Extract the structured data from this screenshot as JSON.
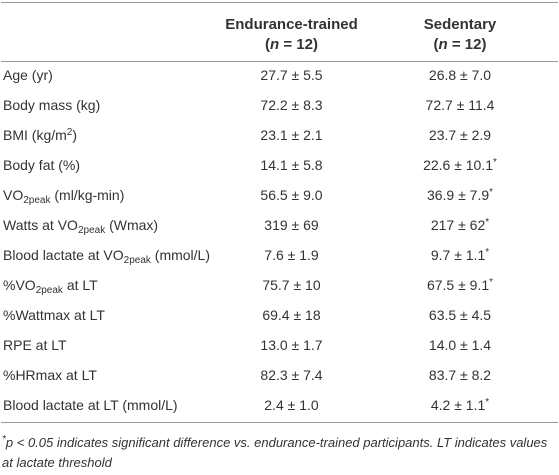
{
  "table": {
    "columns": [
      {
        "title": "Endurance-trained",
        "n": [
          {
            "text": "("
          },
          {
            "text": "n",
            "style": "italic"
          },
          {
            "text": " = 12)"
          }
        ]
      },
      {
        "title": "Sedentary",
        "n": [
          {
            "text": "("
          },
          {
            "text": "n",
            "style": "italic"
          },
          {
            "text": " = 12)"
          }
        ]
      }
    ],
    "rows": [
      {
        "label": [
          {
            "text": "Age (yr)"
          }
        ],
        "cells": [
          [
            {
              "text": "27.7 ± 5.5"
            }
          ],
          [
            {
              "text": "26.8 ± 7.0"
            }
          ]
        ]
      },
      {
        "label": [
          {
            "text": "Body mass (kg)"
          }
        ],
        "cells": [
          [
            {
              "text": "72.2 ± 8.3"
            }
          ],
          [
            {
              "text": "72.7 ± 11.4"
            }
          ]
        ]
      },
      {
        "label": [
          {
            "text": "BMI (kg/m"
          },
          {
            "text": "2",
            "style": "sup"
          },
          {
            "text": ")"
          }
        ],
        "cells": [
          [
            {
              "text": "23.1 ± 2.1"
            }
          ],
          [
            {
              "text": "23.7 ± 2.9"
            }
          ]
        ]
      },
      {
        "label": [
          {
            "text": "Body fat (%)"
          }
        ],
        "cells": [
          [
            {
              "text": "14.1 ± 5.8"
            }
          ],
          [
            {
              "text": "22.6 ± 10.1"
            },
            {
              "text": "*",
              "style": "sup"
            }
          ]
        ]
      },
      {
        "label": [
          {
            "text": "VO"
          },
          {
            "text": "2peak",
            "style": "sub"
          },
          {
            "text": " (ml/kg-min)"
          }
        ],
        "cells": [
          [
            {
              "text": "56.5 ± 9.0"
            }
          ],
          [
            {
              "text": "36.9 ± 7.9"
            },
            {
              "text": "*",
              "style": "sup"
            }
          ]
        ]
      },
      {
        "label": [
          {
            "text": "Watts at VO"
          },
          {
            "text": "2peak",
            "style": "sub"
          },
          {
            "text": " (Wmax)"
          }
        ],
        "cells": [
          [
            {
              "text": "319 ± 69"
            }
          ],
          [
            {
              "text": "217 ± 62"
            },
            {
              "text": "*",
              "style": "sup"
            }
          ]
        ]
      },
      {
        "label": [
          {
            "text": "Blood lactate at VO"
          },
          {
            "text": "2peak",
            "style": "sub"
          },
          {
            "text": " (mmol/L)"
          }
        ],
        "cells": [
          [
            {
              "text": "7.6 ± 1.9"
            }
          ],
          [
            {
              "text": "9.7 ± 1.1"
            },
            {
              "text": "*",
              "style": "sup"
            }
          ]
        ]
      },
      {
        "label": [
          {
            "text": "%VO"
          },
          {
            "text": "2peak",
            "style": "sub"
          },
          {
            "text": " at LT"
          }
        ],
        "cells": [
          [
            {
              "text": "75.7 ± 10"
            }
          ],
          [
            {
              "text": "67.5 ± 9.1"
            },
            {
              "text": "*",
              "style": "sup"
            }
          ]
        ]
      },
      {
        "label": [
          {
            "text": "%Wattmax at LT"
          }
        ],
        "cells": [
          [
            {
              "text": "69.4 ± 18"
            }
          ],
          [
            {
              "text": "63.5 ± 4.5"
            }
          ]
        ]
      },
      {
        "label": [
          {
            "text": "RPE at LT"
          }
        ],
        "cells": [
          [
            {
              "text": "13.0 ± 1.7"
            }
          ],
          [
            {
              "text": "14.0 ± 1.4"
            }
          ]
        ]
      },
      {
        "label": [
          {
            "text": "%HRmax at LT"
          }
        ],
        "cells": [
          [
            {
              "text": "82.3 ± 7.4"
            }
          ],
          [
            {
              "text": "83.7 ± 8.2"
            }
          ]
        ]
      },
      {
        "label": [
          {
            "text": "Blood lactate at LT (mmol/L)"
          }
        ],
        "cells": [
          [
            {
              "text": "2.4 ± 1.0"
            }
          ],
          [
            {
              "text": "4.2 ± 1.1"
            },
            {
              "text": "*",
              "style": "sup"
            }
          ]
        ]
      }
    ]
  },
  "footnote": [
    {
      "text": "*",
      "style": "sup"
    },
    {
      "text": "p < 0.05 indicates significant difference vs. endurance-trained participants. LT indicates values at lactate threshold"
    }
  ]
}
